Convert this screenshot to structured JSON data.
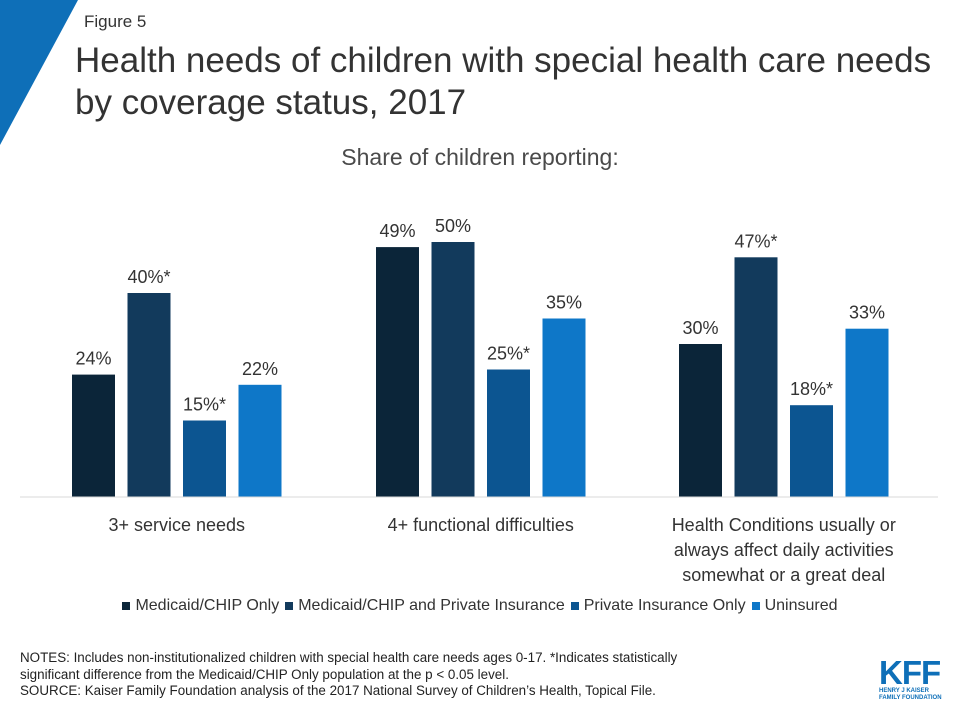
{
  "figure_label": "Figure 5",
  "title": "Health needs of children with special health care needs by coverage status, 2017",
  "subtitle": "Share of children reporting:",
  "colors": {
    "accent": "#0e6fb8",
    "series": [
      "#0b2539",
      "#123a5c",
      "#0c5591",
      "#0e77c8"
    ]
  },
  "chart_data": {
    "type": "bar",
    "title": "Health needs of children with special health care needs by coverage status, 2017",
    "subtitle": "Share of children reporting:",
    "categories": [
      [
        "3+ service needs"
      ],
      [
        "4+ functional difficulties"
      ],
      [
        "Health Conditions usually or",
        "always affect daily activities",
        "somewhat or a great deal"
      ]
    ],
    "series": [
      {
        "name": "Medicaid/CHIP Only",
        "values": [
          24,
          49,
          30
        ],
        "labels": [
          "24%",
          "49%",
          "30%"
        ]
      },
      {
        "name": "Medicaid/CHIP and Private Insurance",
        "values": [
          40,
          50,
          47
        ],
        "labels": [
          "40%*",
          "50%",
          "47%*"
        ]
      },
      {
        "name": "Private Insurance Only",
        "values": [
          15,
          25,
          18
        ],
        "labels": [
          "15%*",
          "25%*",
          "18%*"
        ]
      },
      {
        "name": "Uninsured",
        "values": [
          22,
          35,
          33
        ],
        "labels": [
          "22%",
          "35%",
          "33%"
        ]
      }
    ],
    "ylim": [
      0,
      60
    ],
    "xlabel": "",
    "ylabel": "",
    "legend": "bottom",
    "grid": false
  },
  "notes": [
    "NOTES: Includes non-institutionalized  children with special health care needs ages 0-17. *Indicates statistically",
    "significant difference from the Medicaid/CHIP Only population at the p < 0.05 level.",
    "SOURCE: Kaiser Family Foundation analysis of the 2017 National Survey of Children’s Health, Topical File."
  ],
  "logo": {
    "text": "KFF",
    "sub": [
      "HENRY J KAISER",
      "FAMILY FOUNDATION"
    ]
  }
}
